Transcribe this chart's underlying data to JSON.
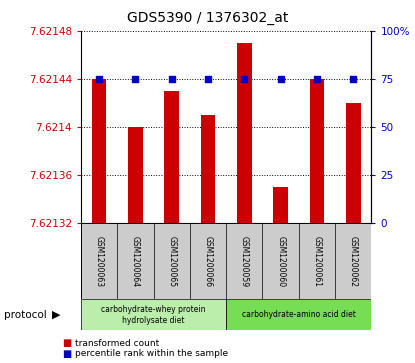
{
  "title": "GDS5390 / 1376302_at",
  "samples": [
    "GSM1200063",
    "GSM1200064",
    "GSM1200065",
    "GSM1200066",
    "GSM1200059",
    "GSM1200060",
    "GSM1200061",
    "GSM1200062"
  ],
  "red_values": [
    7.62144,
    7.6214,
    7.62143,
    7.62141,
    7.62147,
    7.62135,
    7.62144,
    7.62142
  ],
  "blue_values": [
    75,
    75,
    75,
    75,
    75,
    75,
    75,
    75
  ],
  "ylim_left": [
    7.62132,
    7.62148
  ],
  "ylim_right": [
    0,
    100
  ],
  "yticks_left": [
    7.62132,
    7.62136,
    7.6214,
    7.62144,
    7.62148
  ],
  "yticks_left_labels": [
    "7.62132",
    "7.62136",
    "7.6214",
    "7.62144",
    "7.62148"
  ],
  "yticks_right": [
    0,
    25,
    50,
    75,
    100
  ],
  "yticks_right_labels": [
    "0",
    "25",
    "50",
    "75",
    "100%"
  ],
  "group1_label": "carbohydrate-whey protein\nhydrolysate diet",
  "group2_label": "carbohydrate-amino acid diet",
  "protocol_label": "protocol",
  "legend_red": "transformed count",
  "legend_blue": "percentile rank within the sample",
  "bar_color": "#cc0000",
  "dot_color": "#0000cc",
  "group1_color": "#bbeeaa",
  "group2_color": "#77dd55",
  "tick_area_color": "#cccccc",
  "title_fontsize": 10,
  "tick_fontsize": 7.5
}
